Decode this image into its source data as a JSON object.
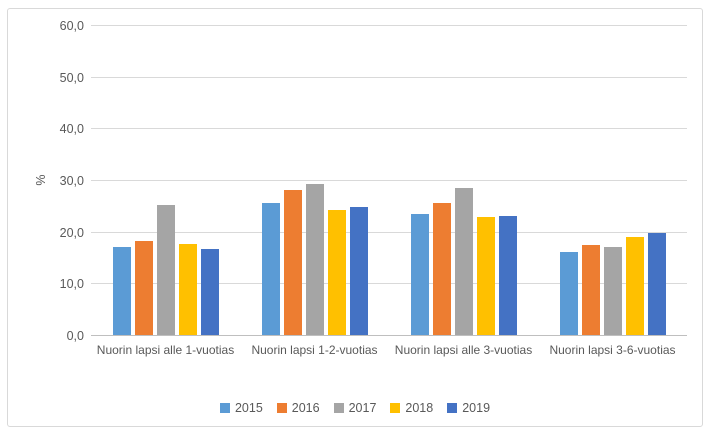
{
  "chart_data": {
    "type": "bar",
    "title": "",
    "xlabel": "",
    "ylabel": "%",
    "ylim": [
      0,
      60
    ],
    "ytick_step": 10,
    "y_tick_labels": [
      "0,0",
      "10,0",
      "20,0",
      "30,0",
      "40,0",
      "50,0",
      "60,0"
    ],
    "grid": true,
    "legend_position": "bottom",
    "categories": [
      "Nuorin lapsi alle 1-vuotias",
      "Nuorin lapsi 1-2-vuotias",
      "Nuorin lapsi alle 3-vuotias",
      "Nuorin lapsi 3-6-vuotias"
    ],
    "series": [
      {
        "name": "2015",
        "color": "#5B9BD5",
        "values": [
          17.0,
          25.6,
          23.4,
          16.0
        ]
      },
      {
        "name": "2016",
        "color": "#ED7D31",
        "values": [
          18.1,
          28.0,
          25.5,
          17.5
        ]
      },
      {
        "name": "2017",
        "color": "#A5A5A5",
        "values": [
          25.1,
          29.3,
          28.4,
          17.0
        ]
      },
      {
        "name": "2018",
        "color": "#FFC000",
        "values": [
          17.6,
          24.2,
          22.8,
          19.0
        ]
      },
      {
        "name": "2019",
        "color": "#4472C4",
        "values": [
          16.7,
          24.7,
          23.1,
          19.8
        ]
      }
    ],
    "colors": {
      "text": "#595959",
      "gridline": "#D9D9D9",
      "axis_line": "#BFBFBF",
      "frame_border": "#D9D9D9",
      "background": "#FFFFFF"
    }
  }
}
